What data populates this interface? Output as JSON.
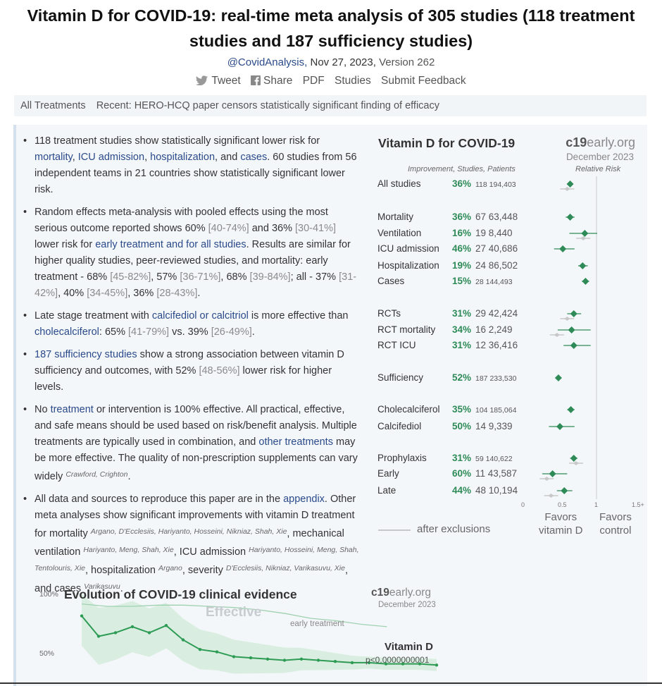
{
  "header": {
    "title": "Vitamin D for COVID-19: real-time meta analysis of 305 studies (118 treatment studies and 187 sufficiency studies)",
    "author": "@CovidAnalysis,",
    "date": "Nov 27, 2023,",
    "version": "Version 262"
  },
  "share": {
    "tweet": "Tweet",
    "share": "Share",
    "pdf": "PDF",
    "studies": "Studies",
    "feedback": "Submit Feedback"
  },
  "navbar": {
    "all_treatments": "All Treatments",
    "recent": "Recent: HERO-HCQ paper censors statistically significant finding of efficacy"
  },
  "bullets": {
    "b1": {
      "t1": "118 treatment studies show statistically significant lower risk for",
      "l1": "mortality",
      "t2": ",",
      "l2": "ICU admission",
      "t3": ",",
      "l3": "hospitalization",
      "t4": ", and",
      "l4": "cases",
      "t5": ". 60 studies from 56 independent teams in 21 countries show statistically significant lower risk."
    },
    "b2": {
      "t1": "Random effects meta-analysis with pooled effects using the most serious outcome reported shows 60%",
      "c1": "[40-74%]",
      "t2": "and 36%",
      "c2": "[30-41%]",
      "t3": "lower risk for",
      "l1": "early treatment and for all studies",
      "t4": ". Results are similar for higher quality studies, peer-reviewed studies, and mortality: early treatment - 68%",
      "c3": "[45-82%]",
      "t5": ", 57%",
      "c4": "[36-71%]",
      "t6": ", 68%",
      "c5": "[39-84%]",
      "t7": "; all - 37%",
      "c6": "[31-42%]",
      "t8": ", 40%",
      "c7": "[34-45%]",
      "t9": ", 36%",
      "c8": "[28-43%]",
      "t10": "."
    },
    "b3": {
      "t1": "Late stage treatment with",
      "l1": "calcifediol or calcitriol",
      "t2": "is more effective than",
      "l2": "cholecalciferol",
      "t3": ": 65%",
      "c1": "[41-79%]",
      "t4": "vs. 39%",
      "c2": "[26-49%]",
      "t5": "."
    },
    "b4": {
      "l1": "187 sufficiency studies",
      "t1": "show a strong association between vitamin D sufficiency and outcomes, with 52%",
      "c1": "[48-56%]",
      "t2": "lower risk for higher levels."
    },
    "b5": {
      "t1": "No",
      "l1": "treatment",
      "t2": "or intervention is 100% effective. All practical, effective, and safe means should be used based on risk/benefit analysis. Multiple treatments are typically used in combination, and",
      "l2": "other treatments",
      "t3": "may be more effective. The quality of non-prescription supplements can vary widely",
      "s1": "Crawford, Crighton",
      "t4": "."
    },
    "b6": {
      "t1": "All data and sources to reproduce this paper are in the",
      "l1": "appendix",
      "t2": ". Other meta analyses show significant improvements with vitamin D treatment for mortality",
      "s1": "Argano, D'Ecclesiis, Hariyanto, Hosseini, Nikniaz, Shah, Xie",
      "t3": ", mechanical ventilation",
      "s2": "Hariyanto, Meng, Shah, Xie",
      "t4": ", ICU admission",
      "s3": "Hariyanto, Hosseini, Meng, Shah, Tentolouris, Xie",
      "t5": ", hospitalization",
      "s4": "Argano",
      "t6": ", severity",
      "s5": "D'Ecclesiis, Nikniaz, Varikasuvu, Xie",
      "t7": ", and cases",
      "s6": "Varikasuvu",
      "t8": "."
    }
  },
  "forest": {
    "title": "Vitamin D for COVID-19",
    "logo_a": "c19",
    "logo_b": "early.org",
    "date": "December 2023",
    "col_header": "Improvement, Studies, Patients",
    "rel_risk": "Relative Risk",
    "rows": [
      {
        "name": "All studies",
        "pct": "36%",
        "studies": "118",
        "patients": "194,403",
        "small": true
      },
      {
        "name": "Mortality",
        "pct": "36%",
        "studies": "67",
        "patients": "63,448",
        "small": false
      },
      {
        "name": "Ventilation",
        "pct": "16%",
        "studies": "19",
        "patients": "8,440",
        "small": false
      },
      {
        "name": "ICU admission",
        "pct": "46%",
        "studies": "27",
        "patients": "40,686",
        "small": false
      },
      {
        "name": "Hospitalization",
        "pct": "19%",
        "studies": "24",
        "patients": "86,502",
        "small": false
      },
      {
        "name": "Cases",
        "pct": "15%",
        "studies": "28",
        "patients": "144,493",
        "small": true
      },
      {
        "name": "RCTs",
        "pct": "31%",
        "studies": "29",
        "patients": "42,424",
        "small": false
      },
      {
        "name": "RCT mortality",
        "pct": "34%",
        "studies": "16",
        "patients": "2,249",
        "small": false
      },
      {
        "name": "RCT ICU",
        "pct": "31%",
        "studies": "12",
        "patients": "36,416",
        "small": false
      },
      {
        "name": "Sufficiency",
        "pct": "52%",
        "studies": "187",
        "patients": "233,530",
        "small": true
      },
      {
        "name": "Cholecalciferol",
        "pct": "35%",
        "studies": "104",
        "patients": "185,064",
        "small": true
      },
      {
        "name": "Calcifediol",
        "pct": "50%",
        "studies": "14",
        "patients": "9,339",
        "small": false
      },
      {
        "name": "Prophylaxis",
        "pct": "31%",
        "studies": "59",
        "patients": "140,622",
        "small": true
      },
      {
        "name": "Early",
        "pct": "60%",
        "studies": "11",
        "patients": "43,587",
        "small": false
      },
      {
        "name": "Late",
        "pct": "44%",
        "studies": "48",
        "patients": "10,194",
        "small": false
      }
    ],
    "axis_ticks": [
      "0",
      "0.5",
      "1",
      "1.5+"
    ],
    "after_exclusions": "after exclusions",
    "favors_d_1": "Favors",
    "favors_d_2": "vitamin D",
    "favors_c_1": "Favors",
    "favors_c_2": "control",
    "colors": {
      "diamond": "#2e8b57",
      "ci": "#2e8b57",
      "excl": "#c8c8c8"
    }
  },
  "chart_data": [
    {
      "type": "scatter",
      "title": "Vitamin D for COVID-19",
      "xlabel": "Relative Risk",
      "xlim": [
        0,
        1.5
      ],
      "categories": [
        "All studies",
        "Mortality",
        "Ventilation",
        "ICU admission",
        "Hospitalization",
        "Cases",
        "RCTs",
        "RCT mortality",
        "RCT ICU",
        "Sufficiency",
        "Cholecalciferol",
        "Calcifediol",
        "Prophylaxis",
        "Early",
        "Late"
      ],
      "relative_risk": [
        0.64,
        0.64,
        0.84,
        0.54,
        0.81,
        0.85,
        0.69,
        0.66,
        0.69,
        0.48,
        0.65,
        0.5,
        0.69,
        0.4,
        0.56
      ],
      "ci_low": [
        0.6,
        0.58,
        0.63,
        0.42,
        0.75,
        0.8,
        0.6,
        0.47,
        0.55,
        0.44,
        0.6,
        0.35,
        0.64,
        0.26,
        0.46
      ],
      "ci_high": [
        0.68,
        0.7,
        1.01,
        0.7,
        0.88,
        0.9,
        0.79,
        0.92,
        0.92,
        0.52,
        0.7,
        0.7,
        0.74,
        0.6,
        0.67
      ],
      "excl_rr": [
        0.6,
        null,
        0.82,
        null,
        null,
        null,
        0.6,
        0.46,
        null,
        null,
        null,
        null,
        0.72,
        0.32,
        0.38
      ]
    },
    {
      "type": "line",
      "title": "Evolution of COVID-19 clinical evidence",
      "series": [
        {
          "name": "Vitamin D",
          "values": [
            0.82,
            0.65,
            0.68,
            0.73,
            0.68,
            0.74,
            0.62,
            0.54,
            0.52,
            0.48,
            0.47,
            0.46,
            0.45,
            0.46,
            0.45,
            0.44,
            0.43,
            0.43,
            0.42,
            0.42,
            0.42,
            0.41
          ]
        },
        {
          "name": "early treatment",
          "values": [
            0.92,
            0.9,
            0.9,
            0.91,
            0.91,
            0.9,
            0.89,
            0.87,
            0.84,
            0.8,
            0.78,
            0.75,
            0.73
          ]
        }
      ],
      "ylabel": "",
      "ytick_labels": [
        "100%",
        "50%"
      ],
      "annotations": [
        "Effective",
        "early treatment",
        "Vitamin D",
        "p<0.0000000001"
      ],
      "logo_a": "c19",
      "logo_b": "early.org",
      "date": "December 2023"
    }
  ]
}
